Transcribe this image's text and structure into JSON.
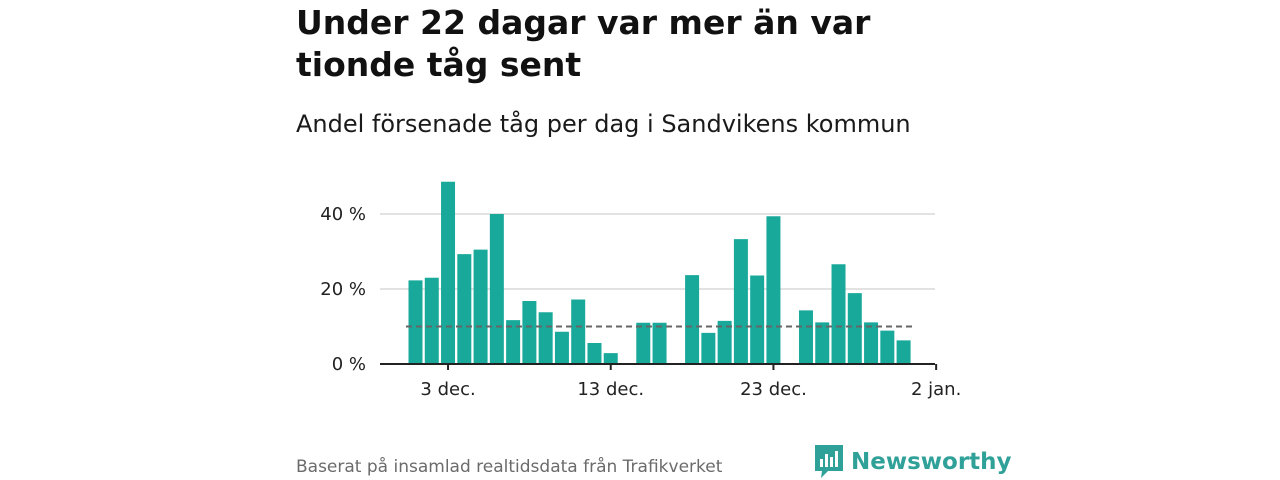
{
  "header": {
    "title": "Under 22 dagar var mer än var tionde tåg sent",
    "subtitle": "Andel försenade tåg per dag i Sandvikens kommun"
  },
  "footer": {
    "source": "Baserat på insamlad realtidsdata från Trafikverket",
    "brand": "Newsworthy"
  },
  "colors": {
    "bar": "#18a99b",
    "reference_line": "#666666",
    "grid": "#d9d9d9",
    "brand": "#30a198"
  },
  "icons": {
    "brand_logo": "bar-chart-speech-bubble-icon"
  },
  "chart_data": {
    "type": "bar",
    "x": [
      "1 dec.",
      "2 dec.",
      "3 dec.",
      "4 dec.",
      "5 dec.",
      "6 dec.",
      "7 dec.",
      "8 dec.",
      "9 dec.",
      "10 dec.",
      "11 dec.",
      "12 dec.",
      "13 dec.",
      "14 dec.",
      "15 dec.",
      "16 dec.",
      "17 dec.",
      "18 dec.",
      "19 dec.",
      "20 dec.",
      "21 dec.",
      "22 dec.",
      "23 dec.",
      "24 dec.",
      "25 dec.",
      "26 dec.",
      "27 dec.",
      "28 dec.",
      "29 dec.",
      "30 dec.",
      "31 dec."
    ],
    "values": [
      22.3,
      23,
      48.6,
      29.3,
      30.5,
      40,
      11.7,
      16.8,
      13.8,
      8.6,
      17.2,
      5.6,
      2.9,
      null,
      11,
      11,
      null,
      23.7,
      8.3,
      11.5,
      33.3,
      23.6,
      39.4,
      null,
      14.3,
      11.1,
      26.6,
      18.9,
      11.1,
      8.9,
      6.3
    ],
    "reference_line": 10,
    "x_ticks": [
      {
        "value": "3 dec.",
        "index": 2
      },
      {
        "value": "13 dec.",
        "index": 12
      },
      {
        "value": "23 dec.",
        "index": 22
      },
      {
        "value": "2 jan.",
        "index": 32
      }
    ],
    "y_ticks": [
      {
        "value": 0,
        "label": "0 %"
      },
      {
        "value": 20,
        "label": "20 %"
      },
      {
        "value": 40,
        "label": "40 %"
      }
    ],
    "ylim": [
      0,
      50
    ],
    "grid": true
  }
}
